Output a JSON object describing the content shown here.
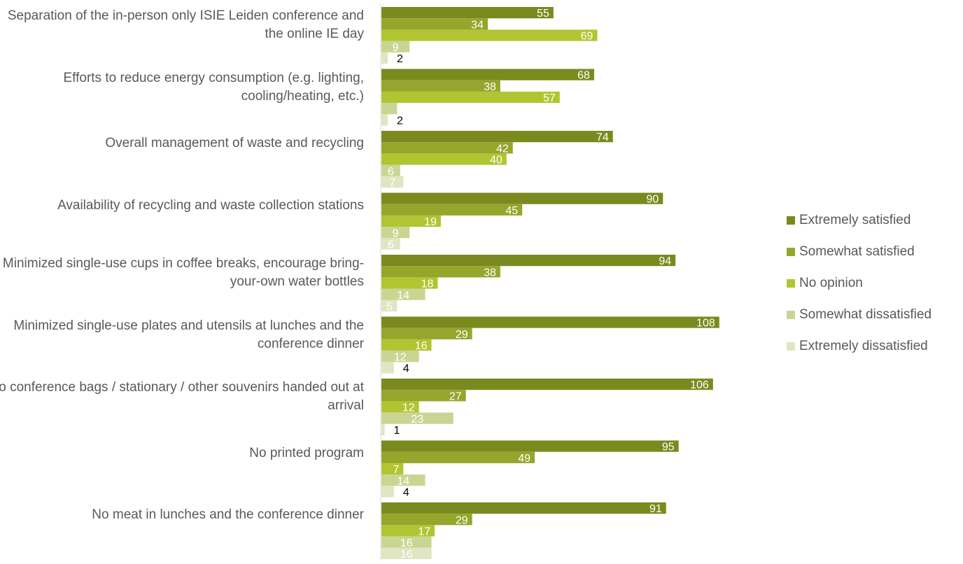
{
  "chart_data": {
    "type": "bar",
    "orientation": "horizontal",
    "categories": [
      "Separation of the in-person only ISIE Leiden conference and the online IE day",
      "Efforts to reduce energy consumption (e.g. lighting, cooling/heating, etc.)",
      "Overall management of waste and recycling",
      "Availability of recycling and waste collection stations",
      "Minimized single-use cups in coffee breaks, encourage bring-your-own water bottles",
      "Minimized single-use plates and utensils at lunches and the conference dinner",
      "No conference bags / stationary / other souvenirs handed out at arrival",
      "No printed program",
      "No meat in lunches and the conference dinner"
    ],
    "series": [
      {
        "name": "Extremely satisfied",
        "color": "#7a8a1e",
        "values": [
          55,
          68,
          74,
          90,
          94,
          108,
          106,
          95,
          91
        ]
      },
      {
        "name": "Somewhat satisfied",
        "color": "#94a62c",
        "values": [
          34,
          38,
          42,
          45,
          38,
          29,
          27,
          49,
          29
        ]
      },
      {
        "name": "No opinion",
        "color": "#b1c532",
        "values": [
          69,
          57,
          40,
          19,
          18,
          16,
          12,
          7,
          17
        ]
      },
      {
        "name": "Somewhat dissatisfied",
        "color": "#c9d693",
        "values": [
          9,
          5,
          6,
          9,
          14,
          12,
          23,
          14,
          16
        ]
      },
      {
        "name": "Extremely dissatisfied",
        "color": "#dfe6c1",
        "values": [
          2,
          2,
          7,
          6,
          5,
          4,
          1,
          4,
          16
        ]
      }
    ],
    "labels": [
      [
        "55",
        "34",
        "69",
        "9",
        "2"
      ],
      [
        "68",
        "38",
        "57",
        "",
        "2"
      ],
      [
        "74",
        "42",
        "40",
        "6",
        "7"
      ],
      [
        "90",
        "45",
        "19",
        "9",
        "6"
      ],
      [
        "94",
        "38",
        "18",
        "14",
        "5"
      ],
      [
        "108",
        "29",
        "16",
        "12",
        "4"
      ],
      [
        "106",
        "27",
        "12",
        "23",
        "1"
      ],
      [
        "95",
        "49",
        "7",
        "14",
        "4"
      ],
      [
        "91",
        "29",
        "17",
        "16",
        "16"
      ]
    ],
    "xlim": [
      0,
      110
    ],
    "legend_position": "right",
    "grid": false
  }
}
